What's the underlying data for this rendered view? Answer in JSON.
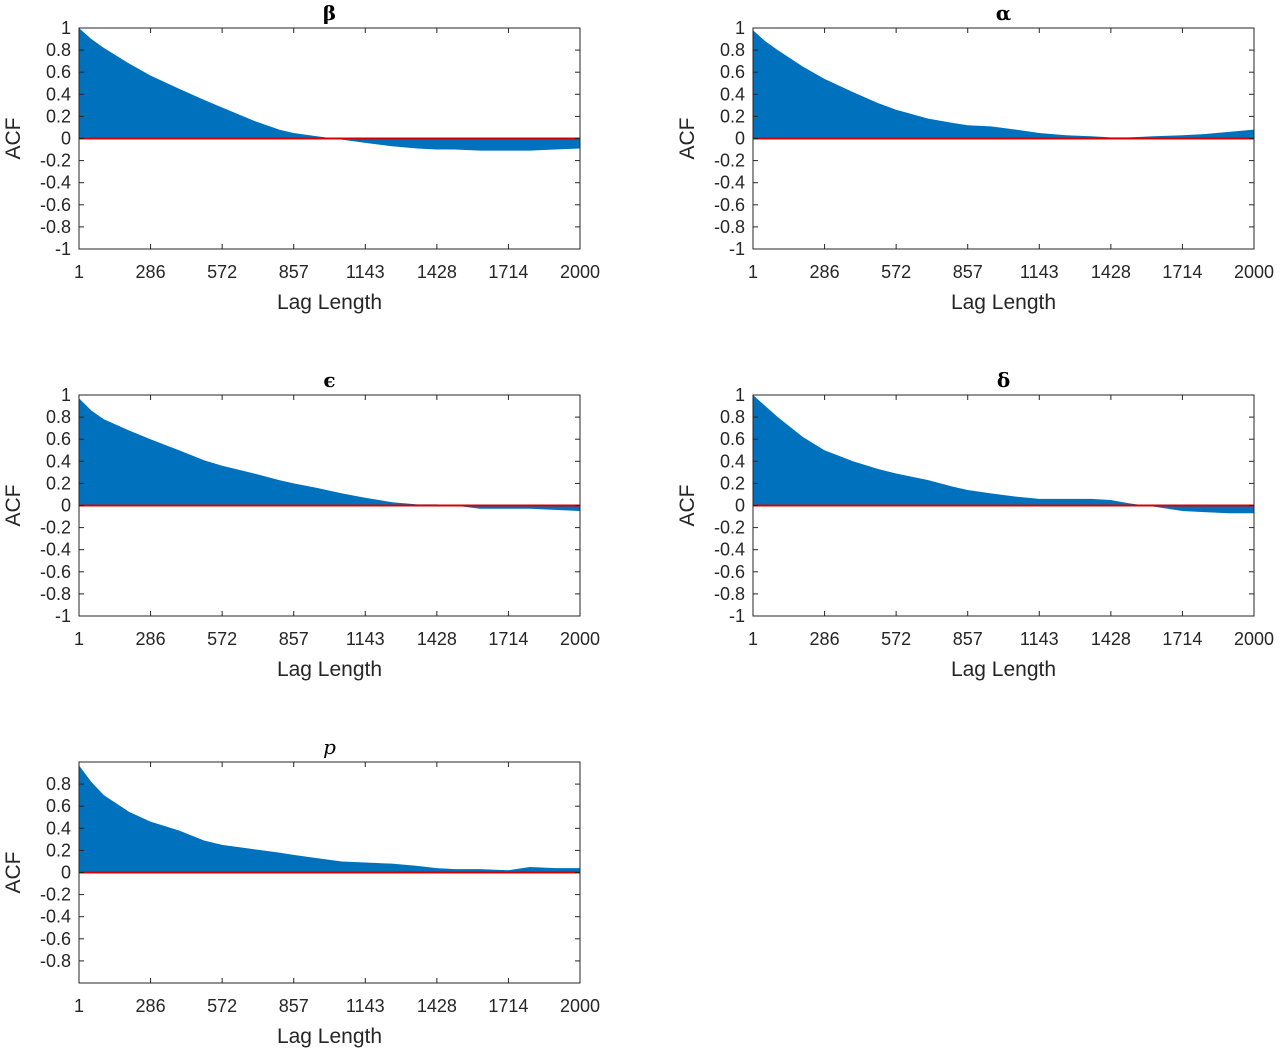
{
  "chart_data": [
    {
      "type": "area",
      "title": "β",
      "xlabel": "Lag Length",
      "ylabel": "ACF",
      "xticks": [
        "1",
        "286",
        "572",
        "857",
        "1143",
        "1428",
        "1714",
        "2000"
      ],
      "yticks": [
        "1",
        "0.8",
        "0.6",
        "0.4",
        "0.2",
        "0",
        "-0.2",
        "-0.4",
        "-0.6",
        "-0.8",
        "-1"
      ],
      "xlim": [
        1,
        2000
      ],
      "ylim": [
        -1,
        1
      ],
      "baseline": 0,
      "x": [
        1,
        50,
        100,
        200,
        286,
        400,
        500,
        572,
        700,
        800,
        857,
        950,
        1050,
        1143,
        1250,
        1350,
        1428,
        1500,
        1600,
        1714,
        1800,
        1900,
        2000
      ],
      "y": [
        1.0,
        0.9,
        0.82,
        0.68,
        0.57,
        0.45,
        0.35,
        0.28,
        0.16,
        0.08,
        0.05,
        0.02,
        -0.01,
        -0.04,
        -0.07,
        -0.09,
        -0.1,
        -0.1,
        -0.11,
        -0.11,
        -0.11,
        -0.1,
        -0.09
      ],
      "colors": {
        "fill": "#0072bd",
        "zero_line": "#d40000"
      }
    },
    {
      "type": "area",
      "title": "α",
      "xlabel": "Lag Length",
      "ylabel": "ACF",
      "xticks": [
        "1",
        "286",
        "572",
        "857",
        "1143",
        "1428",
        "1714",
        "2000"
      ],
      "yticks": [
        "1",
        "0.8",
        "0.6",
        "0.4",
        "0.2",
        "0",
        "-0.2",
        "-0.4",
        "-0.6",
        "-0.8",
        "-1"
      ],
      "xlim": [
        1,
        2000
      ],
      "ylim": [
        -1,
        1
      ],
      "baseline": 0,
      "x": [
        1,
        50,
        100,
        200,
        286,
        400,
        500,
        572,
        700,
        800,
        857,
        950,
        1050,
        1143,
        1250,
        1350,
        1428,
        1500,
        1600,
        1714,
        1800,
        1900,
        2000
      ],
      "y": [
        0.98,
        0.88,
        0.8,
        0.65,
        0.54,
        0.42,
        0.32,
        0.26,
        0.18,
        0.14,
        0.12,
        0.11,
        0.08,
        0.05,
        0.03,
        0.02,
        0.01,
        0.01,
        0.02,
        0.03,
        0.04,
        0.06,
        0.08
      ],
      "colors": {
        "fill": "#0072bd",
        "zero_line": "#d40000"
      }
    },
    {
      "type": "area",
      "title": "ϵ",
      "xlabel": "Lag Length",
      "ylabel": "ACF",
      "xticks": [
        "1",
        "286",
        "572",
        "857",
        "1143",
        "1428",
        "1714",
        "2000"
      ],
      "yticks": [
        "1",
        "0.8",
        "0.6",
        "0.4",
        "0.2",
        "0",
        "-0.2",
        "-0.4",
        "-0.6",
        "-0.8",
        "-1"
      ],
      "xlim": [
        1,
        2000
      ],
      "ylim": [
        -1,
        1
      ],
      "baseline": 0,
      "x": [
        1,
        50,
        100,
        200,
        286,
        400,
        500,
        572,
        700,
        800,
        857,
        950,
        1050,
        1143,
        1250,
        1350,
        1428,
        1500,
        1600,
        1714,
        1800,
        1900,
        2000
      ],
      "y": [
        0.97,
        0.86,
        0.78,
        0.68,
        0.6,
        0.5,
        0.41,
        0.36,
        0.29,
        0.23,
        0.2,
        0.16,
        0.11,
        0.07,
        0.03,
        0.01,
        0.01,
        0.0,
        -0.03,
        -0.03,
        -0.03,
        -0.04,
        -0.05
      ],
      "colors": {
        "fill": "#0072bd",
        "zero_line": "#d40000"
      }
    },
    {
      "type": "area",
      "title": "δ",
      "xlabel": "Lag Length",
      "ylabel": "ACF",
      "xticks": [
        "1",
        "286",
        "572",
        "857",
        "1143",
        "1428",
        "1714",
        "2000"
      ],
      "yticks": [
        "1",
        "0.8",
        "0.6",
        "0.4",
        "0.2",
        "0",
        "-0.2",
        "-0.4",
        "-0.6",
        "-0.8",
        "-1"
      ],
      "xlim": [
        1,
        2000
      ],
      "ylim": [
        -1,
        1
      ],
      "baseline": 0,
      "x": [
        1,
        50,
        100,
        200,
        286,
        400,
        500,
        572,
        700,
        800,
        857,
        950,
        1050,
        1143,
        1250,
        1350,
        1428,
        1500,
        1600,
        1714,
        1800,
        1900,
        2000
      ],
      "y": [
        1.0,
        0.9,
        0.8,
        0.62,
        0.5,
        0.4,
        0.33,
        0.29,
        0.23,
        0.17,
        0.14,
        0.11,
        0.08,
        0.06,
        0.06,
        0.06,
        0.05,
        0.02,
        -0.01,
        -0.05,
        -0.06,
        -0.07,
        -0.07
      ],
      "colors": {
        "fill": "#0072bd",
        "zero_line": "#d40000"
      }
    },
    {
      "type": "area",
      "title": "p",
      "xlabel": "Lag Length",
      "ylabel": "ACF",
      "xticks": [
        "1",
        "286",
        "572",
        "857",
        "1143",
        "1428",
        "1714",
        "2000"
      ],
      "yticks": [
        "0.8",
        "0.6",
        "0.4",
        "0.2",
        "0",
        "-0.2",
        "-0.4",
        "-0.6",
        "-0.8"
      ],
      "xlim": [
        1,
        2000
      ],
      "ylim": [
        -1,
        1
      ],
      "baseline": 0,
      "x": [
        1,
        50,
        100,
        200,
        286,
        400,
        500,
        572,
        700,
        800,
        857,
        950,
        1050,
        1143,
        1250,
        1350,
        1428,
        1500,
        1600,
        1714,
        1800,
        1900,
        2000
      ],
      "y": [
        0.97,
        0.82,
        0.7,
        0.55,
        0.46,
        0.38,
        0.29,
        0.25,
        0.21,
        0.18,
        0.16,
        0.13,
        0.1,
        0.09,
        0.08,
        0.06,
        0.04,
        0.03,
        0.03,
        0.02,
        0.05,
        0.04,
        0.04
      ],
      "colors": {
        "fill": "#0072bd",
        "zero_line": "#d40000"
      }
    }
  ]
}
